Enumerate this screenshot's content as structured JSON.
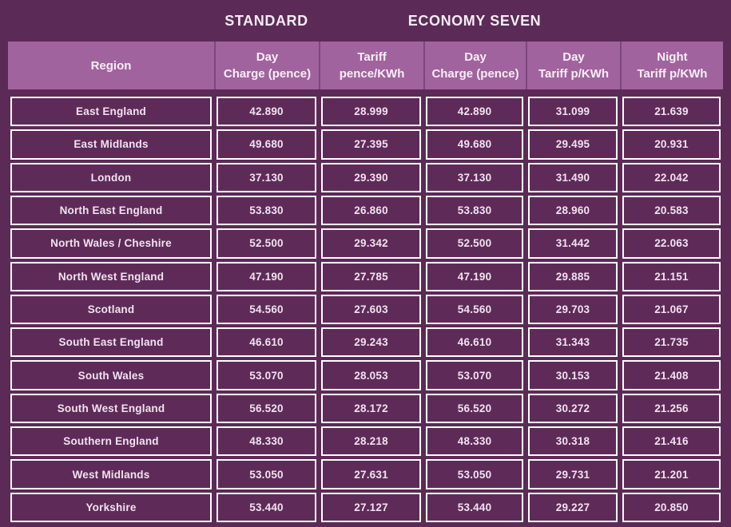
{
  "page": {
    "background_color": "#5c2a57",
    "header_background_color": "#a1639e",
    "cell_border_color": "#ffffff",
    "text_color": "#f1e2ef"
  },
  "groups": {
    "standard": "STANDARD",
    "economy_seven": "ECONOMY SEVEN"
  },
  "table": {
    "columns": [
      "Region",
      "Day\nCharge (pence)",
      "Tariff\npence/KWh",
      "Day\nCharge (pence)",
      "Day\nTariff p/KWh",
      "Night\nTariff p/KWh"
    ],
    "rows": [
      [
        "East England",
        "42.890",
        "28.999",
        "42.890",
        "31.099",
        "21.639"
      ],
      [
        "East Midlands",
        "49.680",
        "27.395",
        "49.680",
        "29.495",
        "20.931"
      ],
      [
        "London",
        "37.130",
        "29.390",
        "37.130",
        "31.490",
        "22.042"
      ],
      [
        "North East England",
        "53.830",
        "26.860",
        "53.830",
        "28.960",
        "20.583"
      ],
      [
        "North Wales / Cheshire",
        "52.500",
        "29.342",
        "52.500",
        "31.442",
        "22.063"
      ],
      [
        "North West England",
        "47.190",
        "27.785",
        "47.190",
        "29.885",
        "21.151"
      ],
      [
        "Scotland",
        "54.560",
        "27.603",
        "54.560",
        "29.703",
        "21.067"
      ],
      [
        "South East England",
        "46.610",
        "29.243",
        "46.610",
        "31.343",
        "21.735"
      ],
      [
        "South Wales",
        "53.070",
        "28.053",
        "53.070",
        "30.153",
        "21.408"
      ],
      [
        "South West England",
        "56.520",
        "28.172",
        "56.520",
        "30.272",
        "21.256"
      ],
      [
        "Southern England",
        "48.330",
        "28.218",
        "48.330",
        "30.318",
        "21.416"
      ],
      [
        "West Midlands",
        "53.050",
        "27.631",
        "53.050",
        "29.731",
        "21.201"
      ],
      [
        "Yorkshire",
        "53.440",
        "27.127",
        "53.440",
        "29.227",
        "20.850"
      ]
    ]
  },
  "chart_data": {
    "type": "table",
    "title": "",
    "column_groups": [
      {
        "label": "STANDARD",
        "columns": [
          "Day Charge (pence)",
          "Tariff pence/KWh"
        ]
      },
      {
        "label": "ECONOMY SEVEN",
        "columns": [
          "Day Charge (pence)",
          "Day Tariff p/KWh",
          "Night Tariff p/KWh"
        ]
      }
    ],
    "columns": [
      "Region",
      "Day Charge (pence)",
      "Tariff pence/KWh",
      "Day Charge (pence)",
      "Day Tariff p/KWh",
      "Night Tariff p/KWh"
    ],
    "rows": [
      [
        "East England",
        42.89,
        28.999,
        42.89,
        31.099,
        21.639
      ],
      [
        "East Midlands",
        49.68,
        27.395,
        49.68,
        29.495,
        20.931
      ],
      [
        "London",
        37.13,
        29.39,
        37.13,
        31.49,
        22.042
      ],
      [
        "North East England",
        53.83,
        26.86,
        53.83,
        28.96,
        20.583
      ],
      [
        "North Wales / Cheshire",
        52.5,
        29.342,
        52.5,
        31.442,
        22.063
      ],
      [
        "North West England",
        47.19,
        27.785,
        47.19,
        29.885,
        21.151
      ],
      [
        "Scotland",
        54.56,
        27.603,
        54.56,
        29.703,
        21.067
      ],
      [
        "South East England",
        46.61,
        29.243,
        46.61,
        31.343,
        21.735
      ],
      [
        "South Wales",
        53.07,
        28.053,
        53.07,
        30.153,
        21.408
      ],
      [
        "South West England",
        56.52,
        28.172,
        56.52,
        30.272,
        21.256
      ],
      [
        "Southern England",
        48.33,
        28.218,
        48.33,
        30.318,
        21.416
      ],
      [
        "West Midlands",
        53.05,
        27.631,
        53.05,
        29.731,
        21.201
      ],
      [
        "Yorkshire",
        53.44,
        27.127,
        53.44,
        29.227,
        20.85
      ]
    ]
  }
}
